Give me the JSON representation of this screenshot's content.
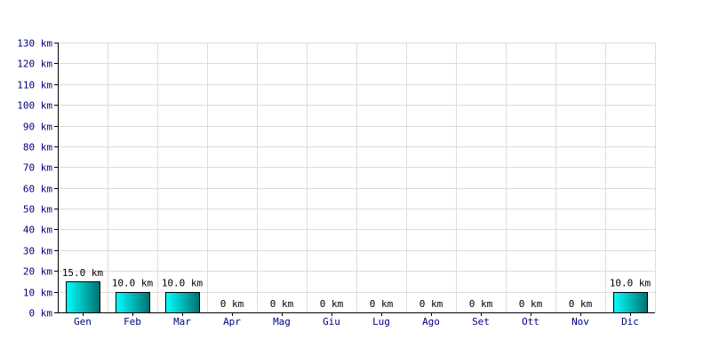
{
  "chart_data": {
    "type": "bar",
    "title": "",
    "xlabel": "",
    "ylabel": "",
    "categories": [
      "Gen",
      "Feb",
      "Mar",
      "Apr",
      "Mag",
      "Giu",
      "Lug",
      "Ago",
      "Set",
      "Ott",
      "Nov",
      "Dic"
    ],
    "values": [
      15,
      10,
      10,
      0,
      0,
      0,
      0,
      0,
      0,
      0,
      0,
      10
    ],
    "data_labels": [
      "15.0 km",
      "10.0 km",
      "10.0 km",
      "0 km",
      "0 km",
      "0 km",
      "0 km",
      "0 km",
      "0 km",
      "0 km",
      "0 km",
      "10.0 km"
    ],
    "ylim": [
      0,
      130
    ],
    "yticks": [
      0,
      10,
      20,
      30,
      40,
      50,
      60,
      70,
      80,
      90,
      100,
      110,
      120,
      130
    ],
    "ytick_labels": [
      "0 km",
      "10 km",
      "20 km",
      "30 km",
      "40 km",
      "50 km",
      "60 km",
      "70 km",
      "80 km",
      "90 km",
      "100 km",
      "110 km",
      "120 km",
      "130 km"
    ],
    "grid": true,
    "legend": "none",
    "colors": {
      "bar_light": "#00ffff",
      "bar_dark": "#007070",
      "bar_stroke": "#000000",
      "grid": "#dcdcdc",
      "axis": "#000000",
      "tick_text": "#000080"
    }
  }
}
